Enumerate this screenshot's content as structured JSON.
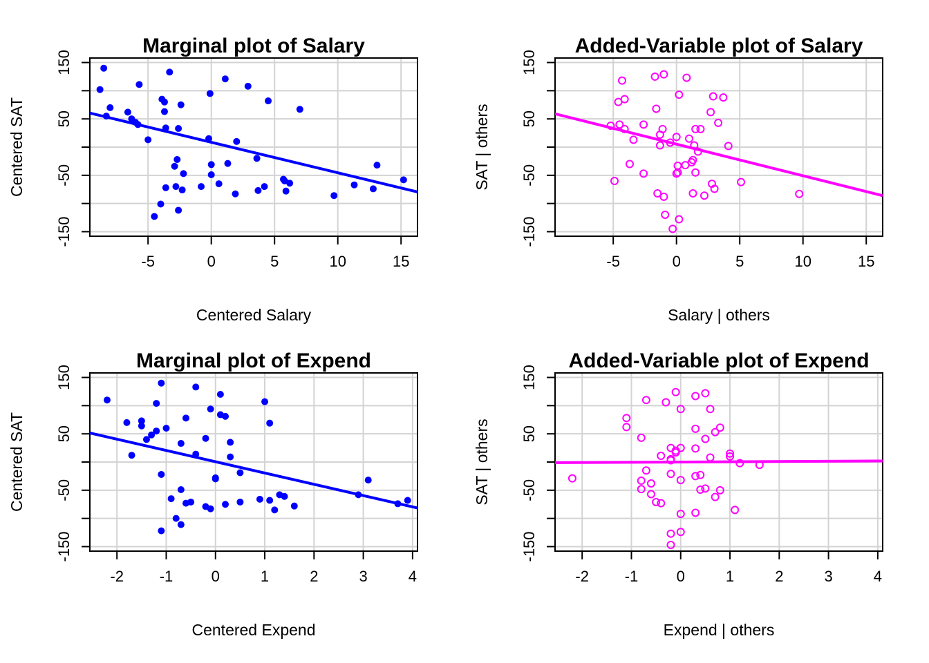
{
  "colors": {
    "marginal": "#0000ff",
    "added_variable": "#ff00ff",
    "grid": "#d3d3d3",
    "axis": "#000000"
  },
  "chart_data": [
    {
      "type": "scatter",
      "title": "Marginal plot of Salary",
      "xlabel": "Centered Salary",
      "ylabel": "Centered SAT",
      "xlim": [
        -9.6,
        16.3
      ],
      "ylim": [
        -158,
        158
      ],
      "xticks": [
        -5,
        0,
        5,
        10,
        15
      ],
      "xtick_labels": [
        "-5",
        "0",
        "5",
        "10",
        "15"
      ],
      "yticks": [
        -150,
        -100,
        -50,
        0,
        50,
        100,
        150
      ],
      "ytick_labels": [
        "-150",
        "",
        "-50",
        "",
        "50",
        "",
        "150"
      ],
      "grid": true,
      "marker": "filled",
      "color": "#0000ff",
      "fit_line": {
        "intercept": 8.5,
        "slope": -5.4
      },
      "points": [
        [
          -8.5,
          140
        ],
        [
          -8.8,
          102
        ],
        [
          -8.3,
          55
        ],
        [
          -8.0,
          70
        ],
        [
          -6.6,
          62
        ],
        [
          -6.3,
          50
        ],
        [
          -6.0,
          44
        ],
        [
          -5.8,
          40
        ],
        [
          -5.7,
          111
        ],
        [
          -5.0,
          13
        ],
        [
          -4.5,
          -123
        ],
        [
          -4.0,
          -101
        ],
        [
          -3.9,
          85
        ],
        [
          -3.7,
          80
        ],
        [
          -3.7,
          63
        ],
        [
          -3.6,
          34
        ],
        [
          -3.6,
          -72
        ],
        [
          -3.3,
          133
        ],
        [
          -2.9,
          -34
        ],
        [
          -2.8,
          -70
        ],
        [
          -2.7,
          -22
        ],
        [
          -2.6,
          33
        ],
        [
          -2.6,
          -112
        ],
        [
          -2.4,
          75
        ],
        [
          -2.3,
          -76
        ],
        [
          -2.2,
          -47
        ],
        [
          -0.8,
          -70
        ],
        [
          -0.2,
          15
        ],
        [
          -0.1,
          95
        ],
        [
          0.0,
          -31
        ],
        [
          0.0,
          -49
        ],
        [
          0.6,
          -65
        ],
        [
          1.1,
          121
        ],
        [
          1.3,
          -29
        ],
        [
          1.9,
          -83
        ],
        [
          2.0,
          10
        ],
        [
          2.9,
          108
        ],
        [
          3.6,
          -20
        ],
        [
          3.7,
          -77
        ],
        [
          4.2,
          -70
        ],
        [
          4.5,
          82
        ],
        [
          5.7,
          -57
        ],
        [
          5.8,
          -60
        ],
        [
          5.9,
          -78
        ],
        [
          6.2,
          -64
        ],
        [
          7.0,
          67
        ],
        [
          9.7,
          -86
        ],
        [
          11.3,
          -67
        ],
        [
          12.8,
          -74
        ],
        [
          13.1,
          -32
        ],
        [
          15.2,
          -58
        ]
      ]
    },
    {
      "type": "scatter",
      "title": "Added-Variable plot of Salary",
      "xlabel": "Salary | others",
      "ylabel": "SAT  | others",
      "xlim": [
        -9.6,
        16.3
      ],
      "ylim": [
        -158,
        158
      ],
      "xticks": [
        -5,
        0,
        5,
        10,
        15
      ],
      "xtick_labels": [
        "-5",
        "0",
        "5",
        "10",
        "15"
      ],
      "yticks": [
        -150,
        -100,
        -50,
        0,
        50,
        100,
        150
      ],
      "ytick_labels": [
        "-150",
        "",
        "-50",
        "",
        "50",
        "",
        "150"
      ],
      "grid": true,
      "marker": "open",
      "color": "#ff00ff",
      "fit_line": {
        "intercept": 5.2,
        "slope": -5.6
      },
      "points": [
        [
          -5.2,
          38
        ],
        [
          -4.9,
          -60
        ],
        [
          -4.6,
          80
        ],
        [
          -4.5,
          40
        ],
        [
          -4.3,
          118
        ],
        [
          -4.1,
          85
        ],
        [
          -4.1,
          32
        ],
        [
          -3.7,
          -30
        ],
        [
          -3.4,
          13
        ],
        [
          -2.6,
          40
        ],
        [
          -2.6,
          -47
        ],
        [
          -1.7,
          125
        ],
        [
          -1.6,
          68
        ],
        [
          -1.5,
          -82
        ],
        [
          -1.3,
          22
        ],
        [
          -1.3,
          3
        ],
        [
          -1.1,
          32
        ],
        [
          -1.0,
          129
        ],
        [
          -1.0,
          -88
        ],
        [
          -0.9,
          -120
        ],
        [
          -0.5,
          8
        ],
        [
          -0.3,
          -145
        ],
        [
          0.0,
          18
        ],
        [
          0.0,
          -47
        ],
        [
          0.1,
          -33
        ],
        [
          0.1,
          -45
        ],
        [
          0.2,
          93
        ],
        [
          0.2,
          -128
        ],
        [
          0.7,
          -32
        ],
        [
          0.8,
          123
        ],
        [
          1.0,
          15
        ],
        [
          1.2,
          -27
        ],
        [
          1.3,
          -23
        ],
        [
          1.3,
          -82
        ],
        [
          1.4,
          3
        ],
        [
          1.5,
          32
        ],
        [
          1.5,
          -45
        ],
        [
          1.7,
          -8
        ],
        [
          1.9,
          32
        ],
        [
          2.2,
          -86
        ],
        [
          2.7,
          62
        ],
        [
          2.8,
          -65
        ],
        [
          2.9,
          90
        ],
        [
          3.0,
          -74
        ],
        [
          3.3,
          43
        ],
        [
          3.7,
          88
        ],
        [
          4.1,
          2
        ],
        [
          5.1,
          -62
        ],
        [
          9.7,
          -83
        ]
      ]
    },
    {
      "type": "scatter",
      "title": "Marginal plot of Expend",
      "xlabel": "Centered Expend",
      "ylabel": "Centered SAT",
      "xlim": [
        -2.55,
        4.1
      ],
      "ylim": [
        -158,
        158
      ],
      "xticks": [
        -2,
        -1,
        0,
        1,
        2,
        3,
        4
      ],
      "xtick_labels": [
        "-2",
        "-1",
        "0",
        "1",
        "2",
        "3",
        "4"
      ],
      "yticks": [
        -150,
        -100,
        -50,
        0,
        50,
        100,
        150
      ],
      "ytick_labels": [
        "-150",
        "",
        "-50",
        "",
        "50",
        "",
        "150"
      ],
      "grid": true,
      "marker": "filled",
      "color": "#0000ff",
      "fit_line": {
        "intercept": 0.5,
        "slope": -20.0
      },
      "points": [
        [
          -2.2,
          110
        ],
        [
          -1.8,
          70
        ],
        [
          -1.7,
          12
        ],
        [
          -1.5,
          73
        ],
        [
          -1.5,
          64
        ],
        [
          -1.4,
          40
        ],
        [
          -1.3,
          48
        ],
        [
          -1.2,
          55
        ],
        [
          -1.2,
          104
        ],
        [
          -1.1,
          140
        ],
        [
          -1.1,
          -22
        ],
        [
          -1.1,
          -122
        ],
        [
          -1.0,
          60
        ],
        [
          -0.9,
          -65
        ],
        [
          -0.8,
          -100
        ],
        [
          -0.7,
          -49
        ],
        [
          -0.7,
          -111
        ],
        [
          -0.7,
          33
        ],
        [
          -0.6,
          -73
        ],
        [
          -0.6,
          78
        ],
        [
          -0.5,
          -71
        ],
        [
          -0.4,
          14
        ],
        [
          -0.4,
          133
        ],
        [
          -0.2,
          42
        ],
        [
          -0.2,
          -79
        ],
        [
          -0.1,
          -83
        ],
        [
          -0.1,
          94
        ],
        [
          0.0,
          -30
        ],
        [
          0.0,
          -28
        ],
        [
          0.1,
          84
        ],
        [
          0.1,
          120
        ],
        [
          0.2,
          -75
        ],
        [
          0.2,
          81
        ],
        [
          0.3,
          35
        ],
        [
          0.3,
          9
        ],
        [
          0.5,
          -19
        ],
        [
          0.5,
          -71
        ],
        [
          0.9,
          -66
        ],
        [
          1.0,
          107
        ],
        [
          1.1,
          69
        ],
        [
          1.1,
          -68
        ],
        [
          1.2,
          -85
        ],
        [
          1.3,
          -58
        ],
        [
          1.4,
          -61
        ],
        [
          1.6,
          -78
        ],
        [
          2.9,
          -58
        ],
        [
          3.1,
          -32
        ],
        [
          3.7,
          -74
        ],
        [
          3.9,
          -68
        ]
      ]
    },
    {
      "type": "scatter",
      "title": "Added-Variable plot of Expend",
      "xlabel": "Expend | others",
      "ylabel": "SAT  | others",
      "xlim": [
        -2.55,
        4.1
      ],
      "ylim": [
        -158,
        158
      ],
      "xticks": [
        -2,
        -1,
        0,
        1,
        2,
        3,
        4
      ],
      "xtick_labels": [
        "-2",
        "-1",
        "0",
        "1",
        "2",
        "3",
        "4"
      ],
      "yticks": [
        -150,
        -100,
        -50,
        0,
        50,
        100,
        150
      ],
      "ytick_labels": [
        "-150",
        "",
        "-50",
        "",
        "50",
        "",
        "150"
      ],
      "grid": true,
      "marker": "open",
      "color": "#ff00ff",
      "fit_line": {
        "intercept": 0.0,
        "slope": 0.45
      },
      "points": [
        [
          -2.2,
          -29
        ],
        [
          -1.1,
          78
        ],
        [
          -1.1,
          62
        ],
        [
          -0.8,
          43
        ],
        [
          -0.8,
          -33
        ],
        [
          -0.8,
          -48
        ],
        [
          -0.7,
          110
        ],
        [
          -0.7,
          -15
        ],
        [
          -0.6,
          -38
        ],
        [
          -0.6,
          -57
        ],
        [
          -0.5,
          -71
        ],
        [
          -0.4,
          -73
        ],
        [
          -0.4,
          11
        ],
        [
          -0.3,
          106
        ],
        [
          -0.2,
          5
        ],
        [
          -0.2,
          25
        ],
        [
          -0.2,
          3
        ],
        [
          -0.2,
          -21
        ],
        [
          -0.2,
          -127
        ],
        [
          -0.2,
          -147
        ],
        [
          -0.1,
          20
        ],
        [
          -0.1,
          17
        ],
        [
          -0.1,
          124
        ],
        [
          0.0,
          25
        ],
        [
          0.0,
          94
        ],
        [
          0.0,
          -32
        ],
        [
          0.0,
          -124
        ],
        [
          0.0,
          -92
        ],
        [
          0.3,
          59
        ],
        [
          0.3,
          -25
        ],
        [
          0.3,
          117
        ],
        [
          0.3,
          -90
        ],
        [
          0.3,
          24
        ],
        [
          0.4,
          -49
        ],
        [
          0.4,
          -23
        ],
        [
          0.5,
          -47
        ],
        [
          0.5,
          41
        ],
        [
          0.5,
          122
        ],
        [
          0.6,
          8
        ],
        [
          0.6,
          94
        ],
        [
          0.7,
          53
        ],
        [
          0.7,
          -62
        ],
        [
          0.8,
          61
        ],
        [
          0.8,
          -50
        ],
        [
          1.0,
          15
        ],
        [
          1.0,
          10
        ],
        [
          1.1,
          -85
        ],
        [
          1.2,
          -2
        ],
        [
          1.6,
          -5
        ]
      ]
    }
  ]
}
